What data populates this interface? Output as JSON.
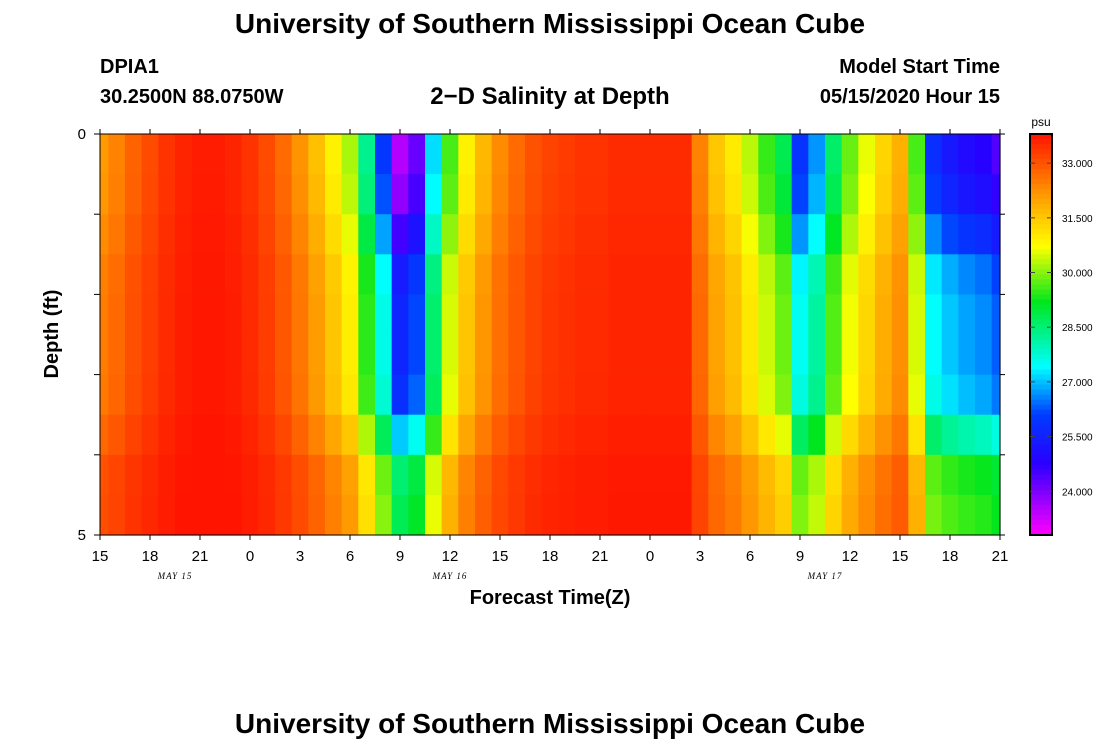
{
  "header": {
    "title": "University of Southern Mississippi Ocean Cube",
    "station_id": "DPIA1",
    "station_location": "30.2500N 88.0750W",
    "chart_title": "2−D Salinity at Depth",
    "model_start_label": "Model Start Time",
    "model_start_value": "05/15/2020 Hour 15"
  },
  "footer": {
    "title": "University of Southern Mississippi Ocean Cube"
  },
  "chart_data": {
    "type": "heatmap",
    "title": "2−D Salinity at Depth",
    "xlabel": "Forecast Time(Z)",
    "ylabel": "Depth (ft)",
    "units": "psu",
    "x_hours_range": [
      0,
      54
    ],
    "ylim": [
      0,
      5
    ],
    "y_tick_labels": [
      "0",
      "5"
    ],
    "x_tick_labels": [
      "15",
      "18",
      "21",
      "0",
      "3",
      "6",
      "9",
      "12",
      "15",
      "18",
      "21",
      "0",
      "3",
      "6",
      "9",
      "12",
      "15",
      "18",
      "21"
    ],
    "date_labels": [
      {
        "label": "MAY 15",
        "hour_offset": 4.5
      },
      {
        "label": "MAY 16",
        "hour_offset": 21
      },
      {
        "label": "MAY 17",
        "hour_offset": 43.5
      }
    ],
    "colorbar": {
      "range": [
        22.8,
        33.8
      ],
      "ticks": [
        "33.000",
        "31.500",
        "30.000",
        "28.500",
        "27.000",
        "25.500",
        "24.000"
      ],
      "tick_values": [
        33.0,
        31.5,
        30.0,
        28.5,
        27.0,
        25.5,
        24.0
      ]
    },
    "time_hours": [
      0,
      1,
      2,
      3,
      4,
      5,
      6,
      7,
      8,
      9,
      10,
      11,
      12,
      13,
      14,
      15,
      16,
      17,
      18,
      19,
      20,
      21,
      22,
      23,
      24,
      25,
      26,
      27,
      28,
      29,
      30,
      31,
      32,
      33,
      34,
      35,
      36,
      37,
      38,
      39,
      40,
      41,
      42,
      43,
      44,
      45,
      46,
      47,
      48,
      49,
      50,
      51,
      52,
      53,
      54
    ],
    "depth_ft": [
      0.25,
      0.75,
      1.25,
      1.75,
      2.25,
      2.75,
      3.25,
      3.75,
      4.25,
      4.75
    ],
    "surface_salinity": [
      32.1,
      32.4,
      32.8,
      33.1,
      33.4,
      33.6,
      33.7,
      33.7,
      33.6,
      33.4,
      33.1,
      32.7,
      32.2,
      31.6,
      30.9,
      30.2,
      28.3,
      26.0,
      23.5,
      24.2,
      27.2,
      29.6,
      30.9,
      31.7,
      32.3,
      32.7,
      33.0,
      33.2,
      33.3,
      33.4,
      33.4,
      33.5,
      33.5,
      33.5,
      33.5,
      33.5,
      32.4,
      31.5,
      31.0,
      30.3,
      29.5,
      28.8,
      25.9,
      26.7,
      28.6,
      29.8,
      30.6,
      31.3,
      31.8,
      29.6,
      25.8,
      25.3,
      25.0,
      24.8,
      24.4
    ],
    "depth_profile": [
      1.0,
      0.97,
      0.9,
      0.82,
      0.8,
      0.8,
      0.78,
      0.66,
      0.52,
      0.5
    ]
  }
}
